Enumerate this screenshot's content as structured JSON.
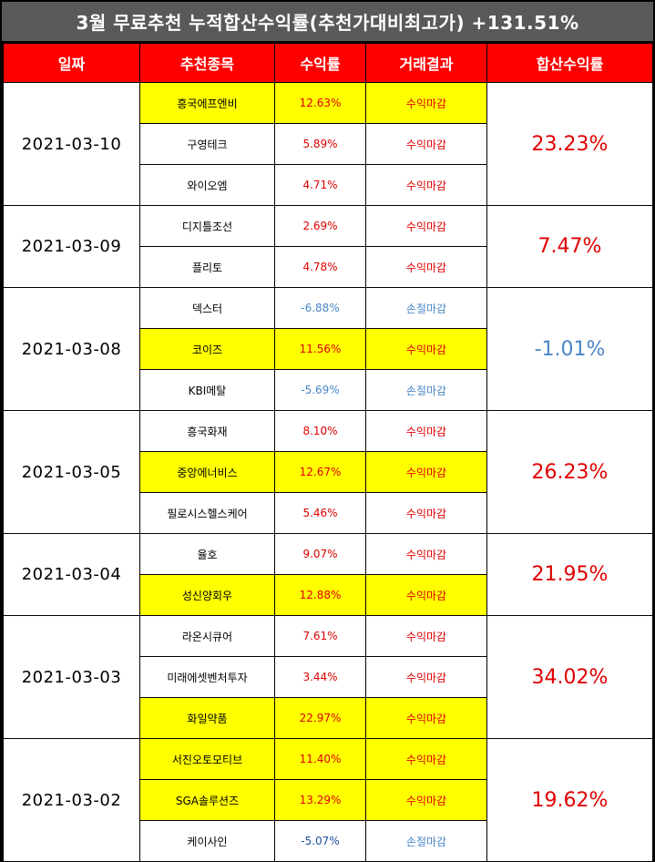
{
  "title": "3월 무료추천 누적합산수익률(추천가대비최고가) +131.51%",
  "headers": [
    "일짜",
    "추천종목",
    "수익률",
    "거래결과",
    "합산수익률"
  ],
  "colors": {
    "header_bg": "#ff0000",
    "highlight": "#ffff00",
    "positive": "#e00000",
    "negative": "#4a86c6"
  },
  "groups": [
    {
      "date": "2021-03-10",
      "sum": "23.23%",
      "sum_sign": "pos",
      "rows": [
        {
          "name": "흥국에프엔비",
          "ret": "12.63%",
          "result": "수익마감",
          "sign": "pos",
          "hl": true
        },
        {
          "name": "구영테크",
          "ret": "5.89%",
          "result": "수익마감",
          "sign": "pos",
          "hl": false
        },
        {
          "name": "와이오엠",
          "ret": "4.71%",
          "result": "수익마감",
          "sign": "pos",
          "hl": false
        }
      ]
    },
    {
      "date": "2021-03-09",
      "sum": "7.47%",
      "sum_sign": "pos",
      "rows": [
        {
          "name": "디지틀조선",
          "ret": "2.69%",
          "result": "수익마감",
          "sign": "pos",
          "hl": false
        },
        {
          "name": "플리토",
          "ret": "4.78%",
          "result": "수익마감",
          "sign": "pos",
          "hl": false
        }
      ]
    },
    {
      "date": "2021-03-08",
      "sum": "-1.01%",
      "sum_sign": "neg",
      "rows": [
        {
          "name": "덱스터",
          "ret": "-6.88%",
          "result": "손절마감",
          "sign": "neg",
          "hl": false
        },
        {
          "name": "코이즈",
          "ret": "11.56%",
          "result": "수익마감",
          "sign": "pos",
          "hl": true
        },
        {
          "name": "KBI메탈",
          "ret": "-5.69%",
          "result": "손절마감",
          "sign": "neg",
          "hl": false
        }
      ]
    },
    {
      "date": "2021-03-05",
      "sum": "26.23%",
      "sum_sign": "pos",
      "rows": [
        {
          "name": "흥국화재",
          "ret": "8.10%",
          "result": "수익마감",
          "sign": "pos",
          "hl": false
        },
        {
          "name": "중앙에너비스",
          "ret": "12.67%",
          "result": "수익마감",
          "sign": "pos",
          "hl": true
        },
        {
          "name": "필로시스헬스케어",
          "ret": "5.46%",
          "result": "수익마감",
          "sign": "pos",
          "hl": false
        }
      ]
    },
    {
      "date": "2021-03-04",
      "sum": "21.95%",
      "sum_sign": "pos",
      "rows": [
        {
          "name": "율호",
          "ret": "9.07%",
          "result": "수익마감",
          "sign": "pos",
          "hl": false
        },
        {
          "name": "성신양회우",
          "ret": "12.88%",
          "result": "수익마감",
          "sign": "pos",
          "hl": true
        }
      ]
    },
    {
      "date": "2021-03-03",
      "sum": "34.02%",
      "sum_sign": "pos",
      "rows": [
        {
          "name": "라온시큐어",
          "ret": "7.61%",
          "result": "수익마감",
          "sign": "pos",
          "hl": false
        },
        {
          "name": "미래에셋벤처투자",
          "ret": "3.44%",
          "result": "수익마감",
          "sign": "pos",
          "hl": false
        },
        {
          "name": "화일약품",
          "ret": "22.97%",
          "result": "수익마감",
          "sign": "pos",
          "hl": true
        }
      ]
    },
    {
      "date": "2021-03-02",
      "sum": "19.62%",
      "sum_sign": "pos",
      "rows": [
        {
          "name": "서진오토모티브",
          "ret": "11.40%",
          "result": "수익마감",
          "sign": "pos",
          "hl": true
        },
        {
          "name": "SGA솔루션즈",
          "ret": "13.29%",
          "result": "수익마감",
          "sign": "pos",
          "hl": true
        },
        {
          "name": "케이사인",
          "ret": "-5.07%",
          "result": "손절마감",
          "sign": "neg-dark",
          "hl": false
        }
      ]
    }
  ]
}
